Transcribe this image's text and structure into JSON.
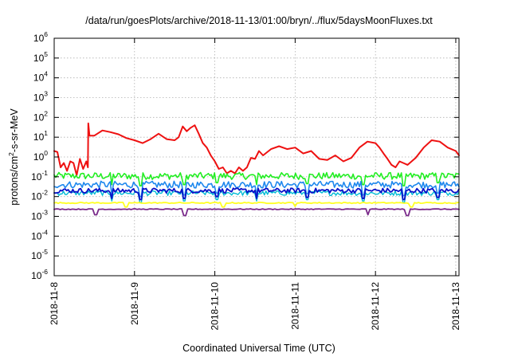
{
  "chart_data": {
    "type": "line",
    "title": "/data/run/goesPlots/archive/2018-11-13/01:00/bryn/../flux/5daysMoonFluxes.txt",
    "xlabel": "Coordinated Universal Time (UTC)",
    "ylabel": {
      "base": "protons/cm",
      "exponent": "2",
      "suffix": "-s-sr-MeV"
    },
    "y_scale": "log",
    "ylim_exponents": [
      -6,
      6
    ],
    "y_tick_base": "10",
    "y_tick_exponents": [
      "6",
      "5",
      "4",
      "3",
      "2",
      "1",
      "0",
      "-1",
      "-2",
      "-3",
      "-4",
      "-5",
      "-6"
    ],
    "x_tick_labels": [
      "2018-11-8",
      "2018-11-9",
      "2018-11-10",
      "2018-11-11",
      "2018-11-12",
      "2018-11-13"
    ],
    "x_range_days": [
      0,
      5.04
    ],
    "grid": true,
    "legend": "none",
    "series": [
      {
        "color": "#ee1111",
        "stroke_width": 2,
        "x": [
          0.0,
          0.04,
          0.08,
          0.12,
          0.16,
          0.2,
          0.24,
          0.28,
          0.32,
          0.36,
          0.4,
          0.42,
          0.425,
          0.44,
          0.5,
          0.6,
          0.7,
          0.8,
          0.9,
          1.0,
          1.1,
          1.2,
          1.3,
          1.4,
          1.5,
          1.55,
          1.6,
          1.65,
          1.7,
          1.75,
          1.8,
          1.85,
          1.9,
          1.95,
          2.0,
          2.05,
          2.1,
          2.15,
          2.2,
          2.25,
          2.3,
          2.35,
          2.4,
          2.45,
          2.5,
          2.55,
          2.6,
          2.7,
          2.8,
          2.9,
          3.0,
          3.1,
          3.2,
          3.3,
          3.4,
          3.5,
          3.6,
          3.7,
          3.8,
          3.9,
          4.0,
          4.05,
          4.1,
          4.15,
          4.2,
          4.25,
          4.3,
          4.4,
          4.5,
          4.6,
          4.7,
          4.8,
          4.9,
          5.0,
          5.04
        ],
        "values": [
          2,
          1.8,
          0.3,
          0.5,
          0.2,
          0.6,
          0.5,
          0.12,
          0.8,
          0.25,
          0.6,
          0.3,
          50,
          12,
          12,
          22,
          18,
          14,
          9,
          7,
          5,
          8,
          15,
          8,
          7,
          10,
          35,
          20,
          30,
          40,
          15,
          5,
          3,
          1.2,
          0.6,
          0.25,
          0.3,
          0.15,
          0.2,
          0.15,
          0.3,
          0.2,
          0.3,
          0.9,
          0.8,
          2,
          1.2,
          2.5,
          3.5,
          2.5,
          3,
          1.5,
          2,
          0.8,
          0.7,
          1.2,
          0.6,
          0.9,
          3,
          6,
          5,
          3,
          1.5,
          0.8,
          0.4,
          0.3,
          0.6,
          0.4,
          0.9,
          3,
          7,
          6,
          3,
          2,
          1.2
        ]
      },
      {
        "color": "#22ee22",
        "stroke_width": 1.6,
        "y_level": 0.11,
        "jitter": 0.5,
        "spikes_x": [
          0.72,
          1.08,
          1.62,
          2.03,
          2.52,
          3.15,
          3.85,
          4.35,
          4.78
        ],
        "spikes_down": [
          0.04,
          0.035,
          0.04,
          0.05,
          0.04,
          0.045,
          0.04,
          0.035,
          0.05
        ],
        "points": 260
      },
      {
        "color": "#1e88ee",
        "stroke_width": 1.6,
        "y_level": 0.04,
        "jitter": 0.5,
        "spikes_x": [
          0.72,
          1.08,
          1.62,
          2.03,
          2.52,
          3.15,
          3.85,
          4.35,
          4.78
        ],
        "spikes_down": [
          0.012,
          0.01,
          0.012,
          0.015,
          0.012,
          0.014,
          0.012,
          0.011,
          0.015
        ],
        "points": 260
      },
      {
        "color": "#00bcd4",
        "stroke_width": 1.4,
        "y_level": 0.015,
        "jitter": 0.35,
        "spikes_x": [
          0.72,
          1.08,
          1.62,
          2.03,
          2.52,
          3.15,
          3.85,
          4.35,
          4.78
        ],
        "spikes_down": [
          0.006,
          0.005,
          0.006,
          0.007,
          0.006,
          0.007,
          0.006,
          0.005,
          0.007
        ],
        "points": 260
      },
      {
        "color": "#0a10c8",
        "stroke_width": 1.8,
        "y_level": 0.02,
        "jitter": 0.35,
        "spikes_x": [
          0.72,
          1.08,
          1.62,
          2.03,
          2.52,
          3.15,
          3.85,
          4.35,
          4.78
        ],
        "spikes_down": [
          0.008,
          0.007,
          0.008,
          0.01,
          0.008,
          0.009,
          0.008,
          0.007,
          0.009
        ],
        "points": 260
      },
      {
        "color": "#ffff22",
        "stroke_width": 1.8,
        "y_level": 0.0048,
        "jitter": 0.08,
        "spikes_x": [
          0.9,
          2.1,
          3.0,
          4.45
        ],
        "spikes_down": [
          0.003,
          0.003,
          0.0032,
          0.003
        ],
        "points": 200
      },
      {
        "color": "#7a2a8a",
        "stroke_width": 1.8,
        "y_level": 0.0023,
        "jitter": 0.06,
        "spikes_x": [
          0.52,
          1.62,
          3.9,
          4.4
        ],
        "spikes_down": [
          0.0012,
          0.0011,
          0.0012,
          0.0011
        ],
        "points": 200
      }
    ]
  }
}
